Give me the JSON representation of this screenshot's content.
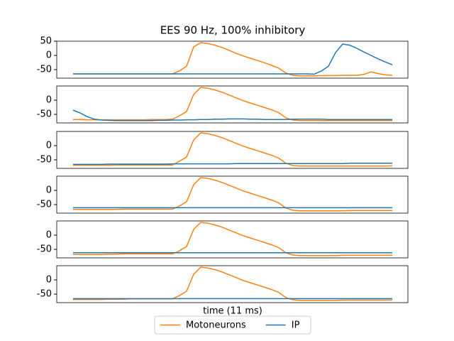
{
  "chart_data": [
    {
      "type": "line",
      "title": "EES 90 Hz, 100% inhibitory",
      "x": [
        0,
        1,
        2,
        3,
        4,
        5,
        6,
        7,
        8,
        9,
        10,
        11,
        12,
        13,
        14,
        15,
        16,
        17,
        18,
        19,
        20,
        21,
        22,
        23,
        24,
        25,
        26,
        27,
        28,
        29,
        30,
        31,
        32,
        33,
        34,
        35,
        36,
        37,
        38,
        39,
        40,
        41,
        42,
        43,
        44,
        45
      ],
      "xlim": [
        -2.3,
        47.2
      ],
      "ylim": [
        -80,
        50
      ],
      "yticks": [
        -50,
        0,
        50
      ],
      "series": [
        {
          "name": "Motoneurons",
          "color": "#ff7f0e",
          "values": [
            -65,
            -65,
            -65,
            -65,
            -65,
            -65,
            -65,
            -65,
            -65,
            -65,
            -65,
            -65,
            -65,
            -65,
            -65,
            -55,
            -38,
            30,
            45,
            42,
            36,
            28,
            18,
            7,
            -2,
            -10,
            -18,
            -26,
            -35,
            -45,
            -62,
            -70,
            -72,
            -72,
            -72,
            -71,
            -71,
            -71,
            -70,
            -70,
            -70,
            -67,
            -58,
            -64,
            -68,
            -70
          ]
        },
        {
          "name": "IP",
          "color": "#1f77b4",
          "values": [
            -65,
            -65,
            -65,
            -65,
            -65,
            -65,
            -65,
            -65,
            -65,
            -65,
            -65,
            -65,
            -65,
            -65,
            -65,
            -65,
            -65,
            -65,
            -65,
            -65,
            -65,
            -65,
            -65,
            -65,
            -65,
            -65,
            -65,
            -65,
            -65,
            -65,
            -65,
            -65,
            -65,
            -65,
            -66,
            -55,
            -38,
            10,
            40,
            36,
            25,
            12,
            0,
            -12,
            -23,
            -33
          ]
        }
      ]
    },
    {
      "type": "line",
      "x": [
        0,
        1,
        2,
        3,
        4,
        5,
        6,
        7,
        8,
        9,
        10,
        11,
        12,
        13,
        14,
        15,
        16,
        17,
        18,
        19,
        20,
        21,
        22,
        23,
        24,
        25,
        26,
        27,
        28,
        29,
        30,
        31,
        32,
        33,
        34,
        35,
        36,
        37,
        38,
        39,
        40,
        41,
        42,
        43,
        44,
        45
      ],
      "xlim": [
        -2.3,
        47.2
      ],
      "ylim": [
        -80,
        50
      ],
      "yticks": [
        -50,
        0
      ],
      "series": [
        {
          "name": "Motoneurons",
          "color": "#ff7f0e",
          "values": [
            -68,
            -68,
            -69,
            -69,
            -69,
            -69,
            -69,
            -69,
            -69,
            -69,
            -69,
            -68,
            -68,
            -68,
            -67,
            -55,
            -40,
            20,
            45,
            42,
            36,
            28,
            18,
            8,
            -2,
            -10,
            -18,
            -26,
            -34,
            -44,
            -62,
            -70,
            -72,
            -72,
            -72,
            -72,
            -72,
            -72,
            -72,
            -72,
            -72,
            -72,
            -72,
            -72,
            -72,
            -72
          ]
        },
        {
          "name": "IP",
          "color": "#1f77b4",
          "values": [
            -35,
            -45,
            -58,
            -67,
            -70,
            -71,
            -72,
            -72,
            -72,
            -72,
            -72,
            -72,
            -71,
            -71,
            -70,
            -70,
            -69,
            -69,
            -68,
            -68,
            -67,
            -67,
            -66,
            -66,
            -66,
            -67,
            -67,
            -68,
            -68,
            -68,
            -68,
            -67,
            -67,
            -67,
            -67,
            -67,
            -68,
            -68,
            -68,
            -68,
            -68,
            -68,
            -68,
            -68,
            -68,
            -68
          ]
        }
      ]
    },
    {
      "type": "line",
      "x": [
        0,
        1,
        2,
        3,
        4,
        5,
        6,
        7,
        8,
        9,
        10,
        11,
        12,
        13,
        14,
        15,
        16,
        17,
        18,
        19,
        20,
        21,
        22,
        23,
        24,
        25,
        26,
        27,
        28,
        29,
        30,
        31,
        32,
        33,
        34,
        35,
        36,
        37,
        38,
        39,
        40,
        41,
        42,
        43,
        44,
        45
      ],
      "xlim": [
        -2.3,
        47.2
      ],
      "ylim": [
        -80,
        50
      ],
      "yticks": [
        -50,
        0
      ],
      "series": [
        {
          "name": "Motoneurons",
          "color": "#ff7f0e",
          "values": [
            -69,
            -69,
            -69,
            -69,
            -69,
            -69,
            -68,
            -68,
            -68,
            -68,
            -68,
            -68,
            -68,
            -68,
            -68,
            -55,
            -40,
            20,
            45,
            42,
            36,
            28,
            18,
            8,
            -2,
            -10,
            -18,
            -26,
            -34,
            -44,
            -62,
            -70,
            -72,
            -72,
            -72,
            -72,
            -72,
            -72,
            -72,
            -72,
            -72,
            -72,
            -72,
            -72,
            -72,
            -71
          ]
        },
        {
          "name": "IP",
          "color": "#1f77b4",
          "values": [
            -66,
            -66,
            -66,
            -66,
            -66,
            -65,
            -65,
            -65,
            -65,
            -65,
            -65,
            -65,
            -65,
            -65,
            -64,
            -64,
            -64,
            -64,
            -64,
            -64,
            -64,
            -64,
            -64,
            -63,
            -63,
            -63,
            -63,
            -63,
            -63,
            -63,
            -63,
            -63,
            -63,
            -63,
            -63,
            -63,
            -63,
            -63,
            -63,
            -62,
            -62,
            -62,
            -62,
            -62,
            -62,
            -62
          ]
        }
      ]
    },
    {
      "type": "line",
      "x": [
        0,
        1,
        2,
        3,
        4,
        5,
        6,
        7,
        8,
        9,
        10,
        11,
        12,
        13,
        14,
        15,
        16,
        17,
        18,
        19,
        20,
        21,
        22,
        23,
        24,
        25,
        26,
        27,
        28,
        29,
        30,
        31,
        32,
        33,
        34,
        35,
        36,
        37,
        38,
        39,
        40,
        41,
        42,
        43,
        44,
        45
      ],
      "xlim": [
        -2.3,
        47.2
      ],
      "ylim": [
        -80,
        50
      ],
      "yticks": [
        -50,
        0
      ],
      "series": [
        {
          "name": "Motoneurons",
          "color": "#ff7f0e",
          "values": [
            -67,
            -67,
            -67,
            -67,
            -67,
            -67,
            -67,
            -66,
            -66,
            -66,
            -66,
            -66,
            -66,
            -66,
            -66,
            -55,
            -40,
            20,
            45,
            42,
            36,
            28,
            18,
            8,
            -2,
            -10,
            -18,
            -26,
            -34,
            -44,
            -62,
            -70,
            -72,
            -72,
            -72,
            -72,
            -72,
            -72,
            -72,
            -71,
            -71,
            -71,
            -71,
            -71,
            -71,
            -71
          ]
        },
        {
          "name": "IP",
          "color": "#1f77b4",
          "values": [
            -61,
            -61,
            -61,
            -61,
            -61,
            -61,
            -61,
            -61,
            -61,
            -61,
            -61,
            -61,
            -61,
            -61,
            -61,
            -61,
            -61,
            -61,
            -61,
            -61,
            -61,
            -61,
            -61,
            -61,
            -61,
            -61,
            -61,
            -61,
            -61,
            -61,
            -61,
            -61,
            -61,
            -61,
            -61,
            -61,
            -61,
            -61,
            -61,
            -61,
            -61,
            -61,
            -61,
            -61,
            -61,
            -61
          ]
        }
      ]
    },
    {
      "type": "line",
      "x": [
        0,
        1,
        2,
        3,
        4,
        5,
        6,
        7,
        8,
        9,
        10,
        11,
        12,
        13,
        14,
        15,
        16,
        17,
        18,
        19,
        20,
        21,
        22,
        23,
        24,
        25,
        26,
        27,
        28,
        29,
        30,
        31,
        32,
        33,
        34,
        35,
        36,
        37,
        38,
        39,
        40,
        41,
        42,
        43,
        44,
        45
      ],
      "xlim": [
        -2.3,
        47.2
      ],
      "ylim": [
        -80,
        50
      ],
      "yticks": [
        -50,
        0
      ],
      "series": [
        {
          "name": "Motoneurons",
          "color": "#ff7f0e",
          "values": [
            -68,
            -68,
            -68,
            -68,
            -68,
            -67,
            -67,
            -66,
            -66,
            -66,
            -66,
            -66,
            -66,
            -66,
            -66,
            -55,
            -40,
            20,
            45,
            42,
            36,
            28,
            18,
            8,
            -2,
            -10,
            -18,
            -26,
            -34,
            -44,
            -62,
            -70,
            -72,
            -72,
            -72,
            -72,
            -72,
            -72,
            -71,
            -71,
            -71,
            -71,
            -71,
            -71,
            -71,
            -71
          ]
        },
        {
          "name": "IP",
          "color": "#1f77b4",
          "values": [
            -62,
            -62,
            -62,
            -62,
            -62,
            -62,
            -62,
            -62,
            -62,
            -62,
            -62,
            -62,
            -62,
            -62,
            -62,
            -62,
            -62,
            -62,
            -62,
            -62,
            -62,
            -62,
            -62,
            -62,
            -62,
            -62,
            -62,
            -62,
            -62,
            -62,
            -62,
            -62,
            -62,
            -62,
            -62,
            -62,
            -62,
            -62,
            -62,
            -62,
            -62,
            -62,
            -62,
            -62,
            -62,
            -62
          ]
        }
      ]
    },
    {
      "type": "line",
      "xlabel": "time (11 ms)",
      "x": [
        0,
        1,
        2,
        3,
        4,
        5,
        6,
        7,
        8,
        9,
        10,
        11,
        12,
        13,
        14,
        15,
        16,
        17,
        18,
        19,
        20,
        21,
        22,
        23,
        24,
        25,
        26,
        27,
        28,
        29,
        30,
        31,
        32,
        33,
        34,
        35,
        36,
        37,
        38,
        39,
        40,
        41,
        42,
        43,
        44,
        45
      ],
      "xlim": [
        -2.3,
        47.2
      ],
      "ylim": [
        -80,
        50
      ],
      "yticks": [
        -50,
        0
      ],
      "series": [
        {
          "name": "Motoneurons",
          "color": "#ff7f0e",
          "values": [
            -69,
            -69,
            -69,
            -69,
            -69,
            -68,
            -68,
            -68,
            -67,
            -67,
            -67,
            -67,
            -67,
            -67,
            -67,
            -55,
            -40,
            20,
            45,
            42,
            36,
            28,
            18,
            8,
            -2,
            -10,
            -18,
            -26,
            -34,
            -44,
            -62,
            -70,
            -72,
            -72,
            -72,
            -72,
            -72,
            -72,
            -71,
            -71,
            -71,
            -71,
            -71,
            -71,
            -71,
            -71
          ]
        },
        {
          "name": "IP",
          "color": "#1f77b4",
          "values": [
            -66,
            -66,
            -66,
            -66,
            -66,
            -66,
            -66,
            -66,
            -66,
            -66,
            -66,
            -66,
            -66,
            -66,
            -66,
            -66,
            -66,
            -66,
            -66,
            -66,
            -66,
            -66,
            -66,
            -66,
            -66,
            -66,
            -66,
            -66,
            -66,
            -66,
            -66,
            -66,
            -66,
            -66,
            -66,
            -66,
            -66,
            -66,
            -66,
            -66,
            -66,
            -66,
            -66,
            -66,
            -66,
            -66
          ]
        }
      ]
    }
  ]
}
